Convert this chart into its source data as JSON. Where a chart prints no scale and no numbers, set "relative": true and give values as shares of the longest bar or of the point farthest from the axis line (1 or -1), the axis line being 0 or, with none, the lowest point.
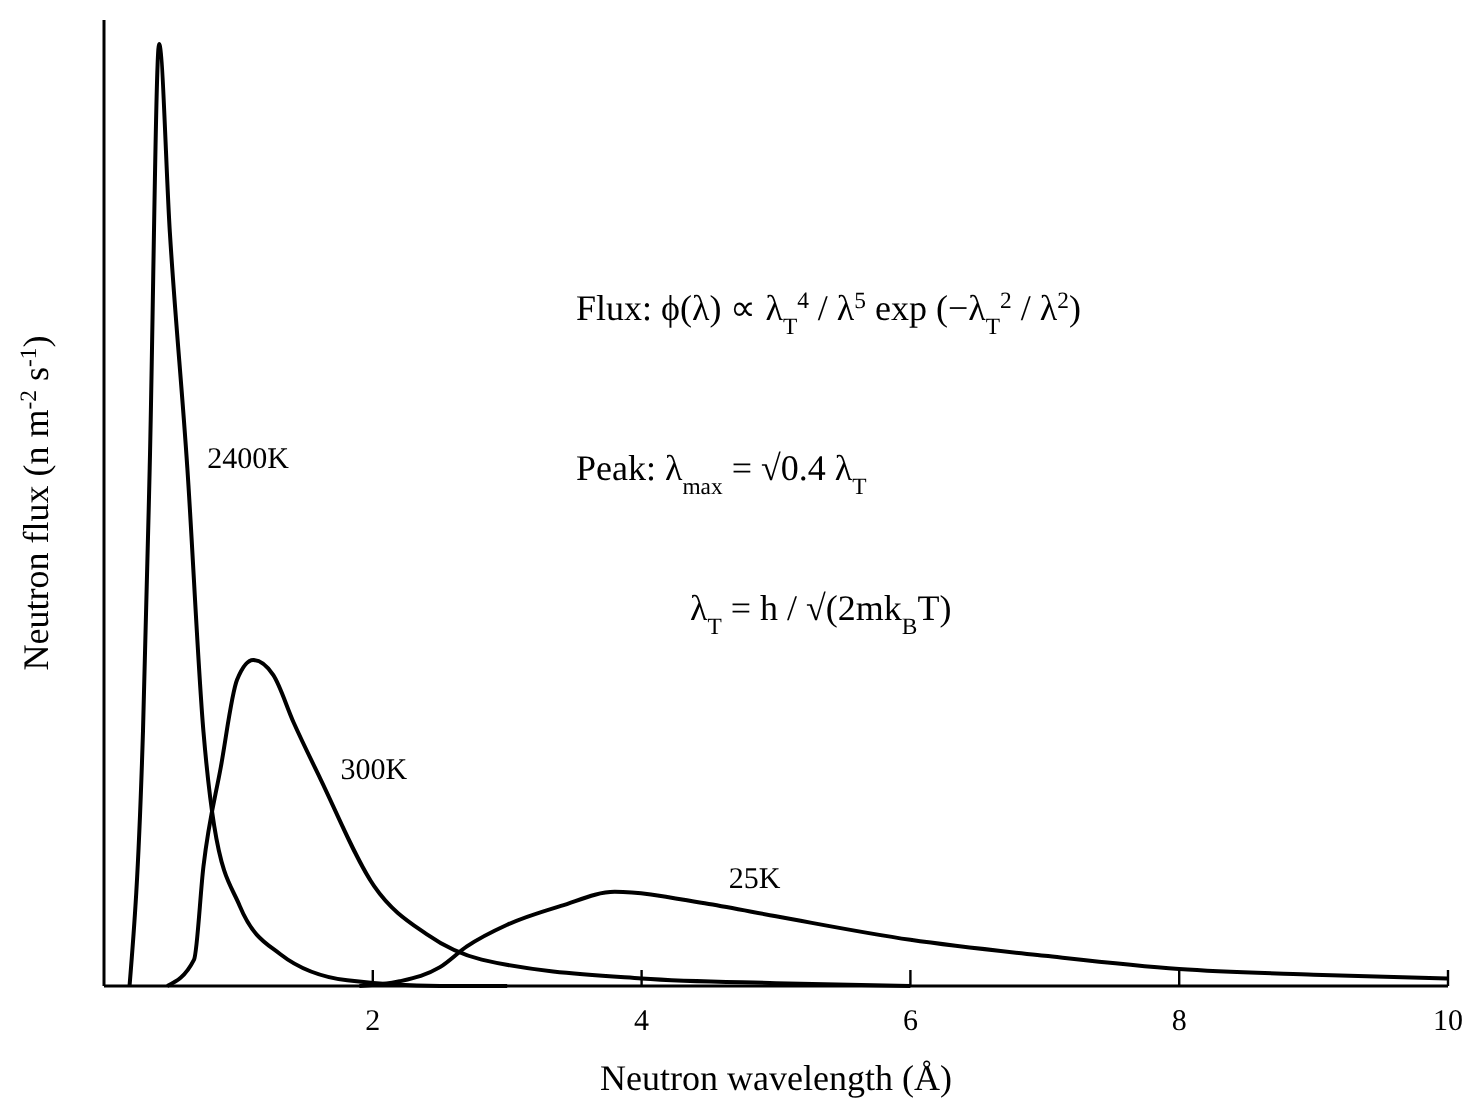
{
  "chart_data": {
    "type": "line",
    "relative": true,
    "xlabel": "Neutron wavelength (Å)",
    "ylabel": "Neutron flux (n m$^{-2}$ s$^{-1}$)",
    "xlim": [
      0,
      10
    ],
    "xticks": [
      2,
      4,
      6,
      8,
      10
    ],
    "marker": "none",
    "line_style": "solid",
    "grid": false,
    "series": [
      {
        "name": "2400K",
        "color": "#000000",
        "x": [
          0.19,
          0.29,
          0.34,
          0.41,
          0.49,
          0.62,
          0.74,
          0.82,
          1.01,
          1.31,
          1.81,
          2.5,
          3
        ],
        "values": [
          0,
          0.27,
          0.55,
          1,
          0.8,
          0.55,
          0.27,
          0.17,
          0.085,
          0.034,
          0.006,
          0,
          0
        ]
      },
      {
        "name": "300K",
        "color": "#000000",
        "x": [
          0.47,
          0.67,
          0.74,
          0.87,
          0.99,
          1.11,
          1.26,
          1.41,
          1.61,
          2.01,
          2.4,
          2.81,
          4,
          5,
          6
        ],
        "values": [
          0,
          0.028,
          0.127,
          0.233,
          0.325,
          0.346,
          0.33,
          0.28,
          0.22,
          0.106,
          0.055,
          0.028,
          0.008,
          0.003,
          0
        ]
      },
      {
        "name": "25K",
        "color": "#000000",
        "x": [
          1.9,
          2.2,
          2.5,
          2.7,
          3,
          3.4,
          3.8,
          4.5,
          5,
          6,
          7,
          8,
          9,
          10
        ],
        "values": [
          0,
          0.005,
          0.02,
          0.042,
          0.065,
          0.085,
          0.1,
          0.087,
          0.074,
          0.049,
          0.032,
          0.018,
          0.012,
          0.008
        ]
      }
    ],
    "annotations": [
      "Flux:  ϕ(λ) ∝ λ$_{T}$$^{4}$ / λ$^{5}$ exp (−λ$_{T}$$^{2}$ / λ$^{2}$)",
      "Peak:  λ$_{max}$ = √0.4  λ$_{T}$",
      "λ$_{T}$ = h / √(2mk$_{B}$T)"
    ]
  }
}
